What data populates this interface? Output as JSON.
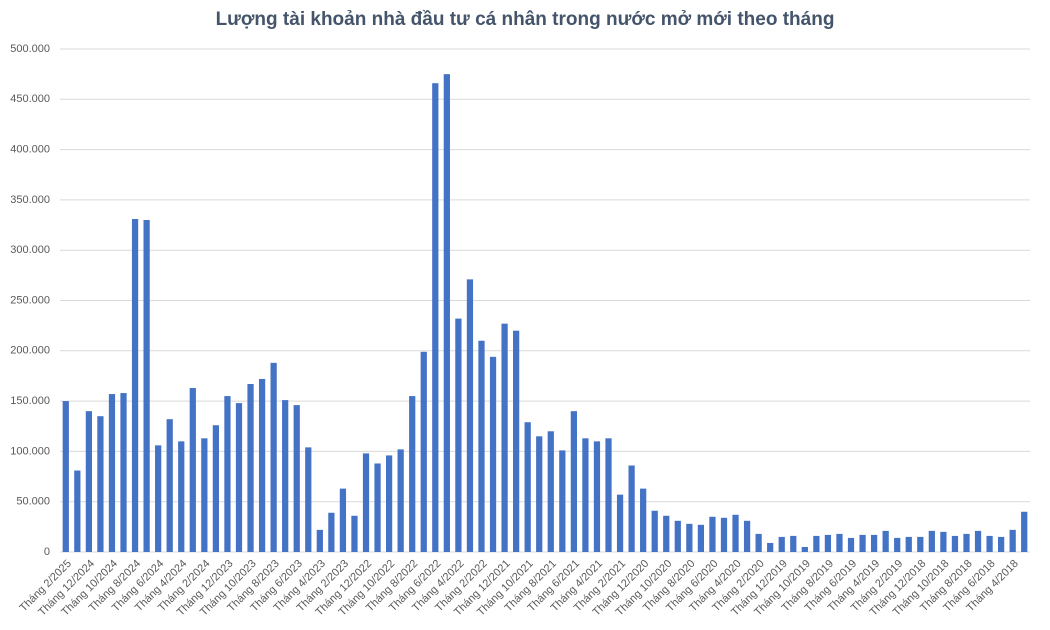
{
  "chart_data": {
    "type": "bar",
    "title": "Lượng tài khoản nhà đầu tư cá nhân trong nước mở mới theo tháng",
    "categories": [
      "Tháng 2/2025",
      null,
      "Tháng 12/2024",
      null,
      "Tháng 10/2024",
      null,
      "Tháng 8/2024",
      null,
      "Tháng 6/2024",
      null,
      "Tháng 4/2024",
      null,
      "Tháng 2/2024",
      null,
      "Tháng 12/2023",
      null,
      "Tháng 10/2023",
      null,
      "Tháng 8/2023",
      null,
      "Tháng 6/2023",
      null,
      "Tháng 4/2023",
      null,
      "Tháng 2/2023",
      null,
      "Tháng 12/2022",
      null,
      "Tháng 10/2022",
      null,
      "Tháng 8/2022",
      null,
      "Tháng 6/2022",
      null,
      "Tháng 4/2022",
      null,
      "Tháng 2/2022",
      null,
      "Tháng 12/2021",
      null,
      "Tháng 10/2021",
      null,
      "Tháng 8/2021",
      null,
      "Tháng 6/2021",
      null,
      "Tháng 4/2021",
      null,
      "Tháng 2/2021",
      null,
      "Tháng 12/2020",
      null,
      "Tháng 10/2020",
      null,
      "Tháng 8/2020",
      null,
      "Tháng 6/2020",
      null,
      "Tháng 4/2020",
      null,
      "Tháng 2/2020",
      null,
      "Tháng 12/2019",
      null,
      "Tháng 10/2019",
      null,
      "Tháng 8/2019",
      null,
      "Tháng 6/2019",
      null,
      "Tháng 4/2019",
      null,
      "Tháng 2/2019",
      null,
      "Tháng 12/2018",
      null,
      "Tháng 10/2018",
      null,
      "Tháng 8/2018",
      null,
      "Tháng 6/2018",
      null,
      "Tháng 4/2018",
      null
    ],
    "values": [
      150000,
      81000,
      140000,
      135000,
      157000,
      158000,
      331000,
      330000,
      106000,
      132000,
      110000,
      163000,
      113000,
      126000,
      155000,
      148000,
      167000,
      172000,
      188000,
      151000,
      146000,
      104000,
      22000,
      39000,
      63000,
      36000,
      98000,
      88000,
      96000,
      102000,
      155000,
      199000,
      466000,
      475000,
      232000,
      271000,
      210000,
      194000,
      227000,
      220000,
      129000,
      115000,
      120000,
      101000,
      140000,
      113000,
      110000,
      113000,
      57000,
      86000,
      63000,
      41000,
      36000,
      31000,
      28000,
      27000,
      35000,
      34000,
      37000,
      31000,
      18000,
      9000,
      15000,
      16000,
      5000,
      16000,
      17000,
      18000,
      14000,
      17000,
      17000,
      21000,
      14000,
      15000,
      15000,
      21000,
      20000,
      16000,
      18000,
      21000,
      16000,
      15000,
      22000,
      40000
    ],
    "color": "#4472c4",
    "ylim": [
      0,
      500000
    ],
    "yticks": [
      0,
      {
        "value": 50000,
        "label": "50.000"
      },
      {
        "value": 100000,
        "label": "100.000"
      },
      {
        "value": 150000,
        "label": "150.000"
      },
      {
        "value": 200000,
        "label": "200.000"
      },
      {
        "value": 250000,
        "label": "250.000"
      },
      {
        "value": 300000,
        "label": "300.000"
      },
      {
        "value": 350000,
        "label": "350.000"
      },
      {
        "value": 400000,
        "label": "400.000"
      },
      {
        "value": 450000,
        "label": "450.000"
      },
      {
        "value": 500000,
        "label": "500.000"
      }
    ],
    "grid": true
  }
}
